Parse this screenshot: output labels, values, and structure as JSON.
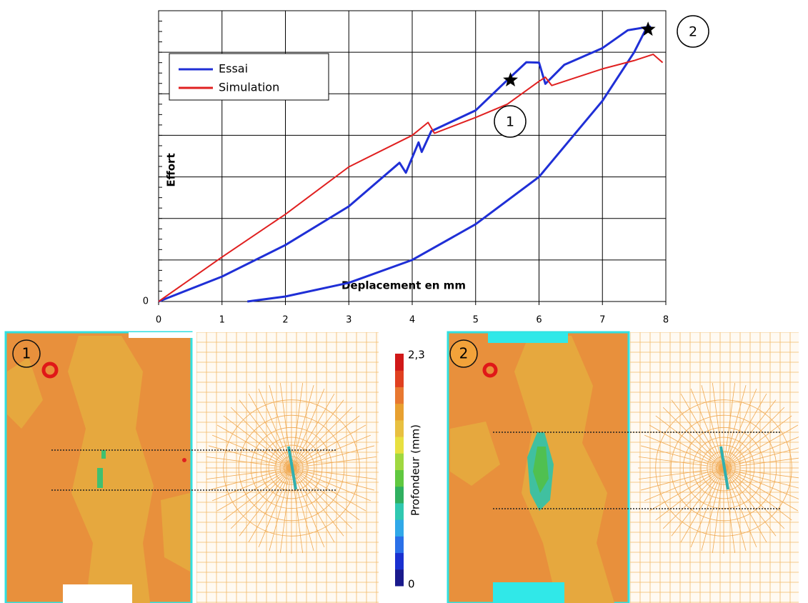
{
  "chart_data": {
    "type": "line",
    "xlabel": "Deplacement en mm",
    "ylabel": "Effort",
    "xlim": [
      0,
      8
    ],
    "xticks": [
      0,
      1,
      2,
      3,
      4,
      5,
      6,
      7,
      8
    ],
    "ylim": [
      0,
      7
    ],
    "yticks": [
      0
    ],
    "ygrid": [
      0,
      1,
      2,
      3,
      4,
      5,
      6,
      7
    ],
    "grid": true,
    "legend": "upper left",
    "series": [
      {
        "name": "Essai",
        "color": "#1f2fd6",
        "x": [
          0,
          1,
          2,
          3,
          3.8,
          3.9,
          4.1,
          4.15,
          4.3,
          5,
          5.5,
          5.8,
          6.0,
          6.1,
          6.4,
          7,
          7.4,
          7.75,
          7.7,
          7.5,
          7,
          6,
          5,
          4,
          3,
          2,
          1.4
        ],
        "values": [
          0,
          0.6,
          1.36,
          2.29,
          3.34,
          3.1,
          3.83,
          3.6,
          4.1,
          4.6,
          5.33,
          5.76,
          5.75,
          5.24,
          5.7,
          6.1,
          6.53,
          6.62,
          6.6,
          6.0,
          4.83,
          3.0,
          1.86,
          1.0,
          0.45,
          0.12,
          0
        ]
      },
      {
        "name": "Simulation",
        "color": "#e02020",
        "x": [
          0,
          1,
          2,
          3,
          4,
          4.25,
          4.35,
          5,
          5.5,
          6,
          6.1,
          6.2,
          6.5,
          7,
          7.5,
          7.8,
          7.95
        ],
        "values": [
          0,
          1.07,
          2.1,
          3.24,
          4.0,
          4.31,
          4.05,
          4.43,
          4.75,
          5.3,
          5.4,
          5.2,
          5.35,
          5.6,
          5.8,
          5.95,
          5.75
        ]
      }
    ],
    "points": {
      "x": [
        5.55,
        7.72
      ],
      "values": [
        5.33,
        6.55
      ],
      "color": "#000000"
    },
    "annotations": [
      "1",
      "2"
    ]
  },
  "panels": [
    {
      "label": "1"
    },
    {
      "label": "2"
    }
  ],
  "colorbar": {
    "title": "Profondeur (mm)",
    "lim": [
      0,
      2.3
    ],
    "ticks": [
      0,
      {
        "value": 2.3,
        "label": "2,3"
      }
    ]
  }
}
